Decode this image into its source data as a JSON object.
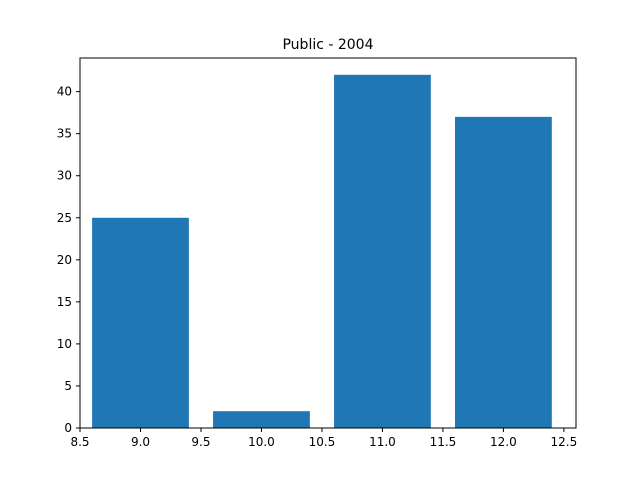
{
  "chart_data": {
    "type": "bar",
    "title": "Public - 2004",
    "xlabel": "",
    "ylabel": "",
    "x": [
      9.0,
      10.0,
      11.0,
      12.0
    ],
    "values": [
      25,
      2,
      42,
      37
    ],
    "bar_width": 0.8,
    "xlim": [
      8.5,
      12.6
    ],
    "ylim": [
      0,
      44
    ],
    "xticks": [
      "8.5",
      "9.0",
      "9.5",
      "10.0",
      "10.5",
      "11.0",
      "11.5",
      "12.0",
      "12.5"
    ],
    "yticks": [
      "0",
      "5",
      "10",
      "15",
      "20",
      "25",
      "30",
      "35",
      "40"
    ],
    "bar_color": "#1f77b4",
    "grid": false
  }
}
